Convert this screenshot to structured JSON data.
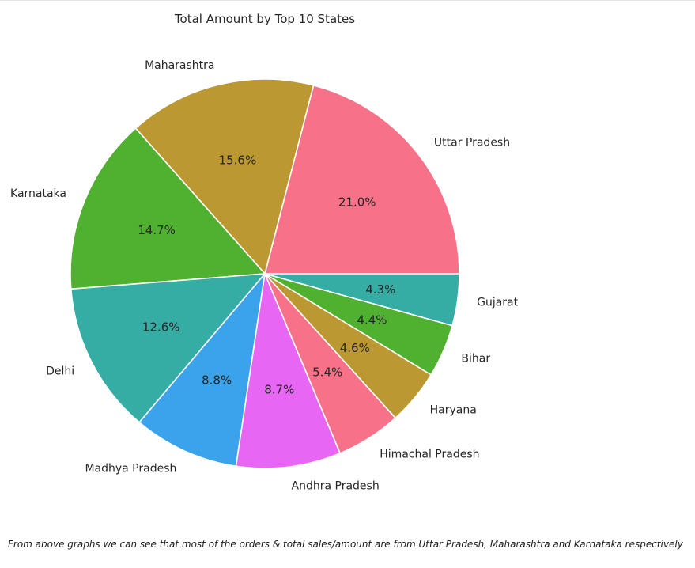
{
  "chart_data": {
    "type": "pie",
    "title": "Total Amount by Top 10 States",
    "categories": [
      "Uttar Pradesh",
      "Maharashtra",
      "Karnataka",
      "Delhi",
      "Madhya Pradesh",
      "Andhra Pradesh",
      "Himachal Pradesh",
      "Haryana",
      "Bihar",
      "Gujarat"
    ],
    "values": [
      21.0,
      15.6,
      14.7,
      12.6,
      8.8,
      8.7,
      5.4,
      4.6,
      4.4,
      4.3
    ],
    "percent_labels": [
      "21.0%",
      "15.6%",
      "14.7%",
      "12.6%",
      "8.8%",
      "8.7%",
      "5.4%",
      "4.6%",
      "4.4%",
      "4.3%"
    ],
    "colors": [
      "#f77189",
      "#bb9832",
      "#50b131",
      "#36ada4",
      "#3ba3ec",
      "#e866f4",
      "#f77189",
      "#bb9832",
      "#50b131",
      "#36ada4"
    ],
    "start_angle_deg": 0,
    "direction": "counterclockwise"
  },
  "note": {
    "text": "From above graphs we can see that most of the orders & total sales/amount are from Uttar Pradesh, Maharashtra and Karnataka respectively"
  }
}
